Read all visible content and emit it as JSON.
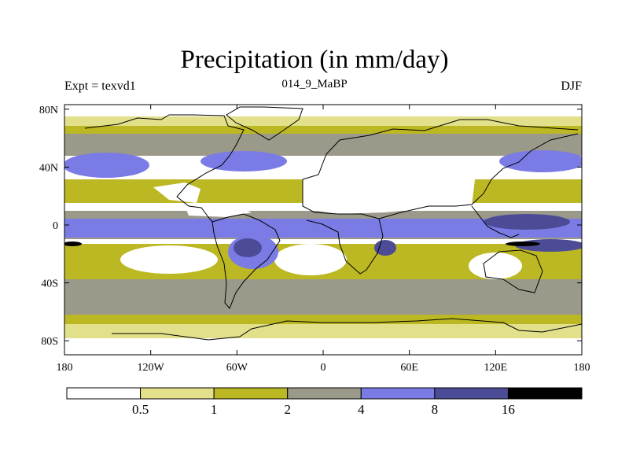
{
  "title": "Precipitation (in mm/day)",
  "subtitle_left": "Expt = texvd1",
  "subtitle_center": "014_9_MaBP",
  "subtitle_right": "DJF",
  "lat_ticks": [
    {
      "value": 80,
      "label": "80N"
    },
    {
      "value": 40,
      "label": "40N"
    },
    {
      "value": 0,
      "label": "0"
    },
    {
      "value": -40,
      "label": "40S"
    },
    {
      "value": -80,
      "label": "80S"
    }
  ],
  "lon_ticks": [
    {
      "value": -180,
      "label": "180"
    },
    {
      "value": -120,
      "label": "120W"
    },
    {
      "value": -60,
      "label": "60W"
    },
    {
      "value": 0,
      "label": "0"
    },
    {
      "value": 60,
      "label": "60E"
    },
    {
      "value": 120,
      "label": "120E"
    },
    {
      "value": 180,
      "label": "180"
    }
  ],
  "colorbar": {
    "levels": [
      "0.5",
      "1",
      "2",
      "4",
      "8",
      "16"
    ],
    "colors": [
      "#ffffff",
      "#e2e08a",
      "#bcb823",
      "#9a998a",
      "#7b7be6",
      "#4c4c96",
      "#000000"
    ]
  },
  "palette": {
    "white": "#ffffff",
    "pale_yellow": "#e2e08a",
    "olive": "#bcb823",
    "gray": "#9a998a",
    "light_blue": "#7b7be6",
    "dark_blue": "#4c4c96",
    "black": "#000000"
  }
}
